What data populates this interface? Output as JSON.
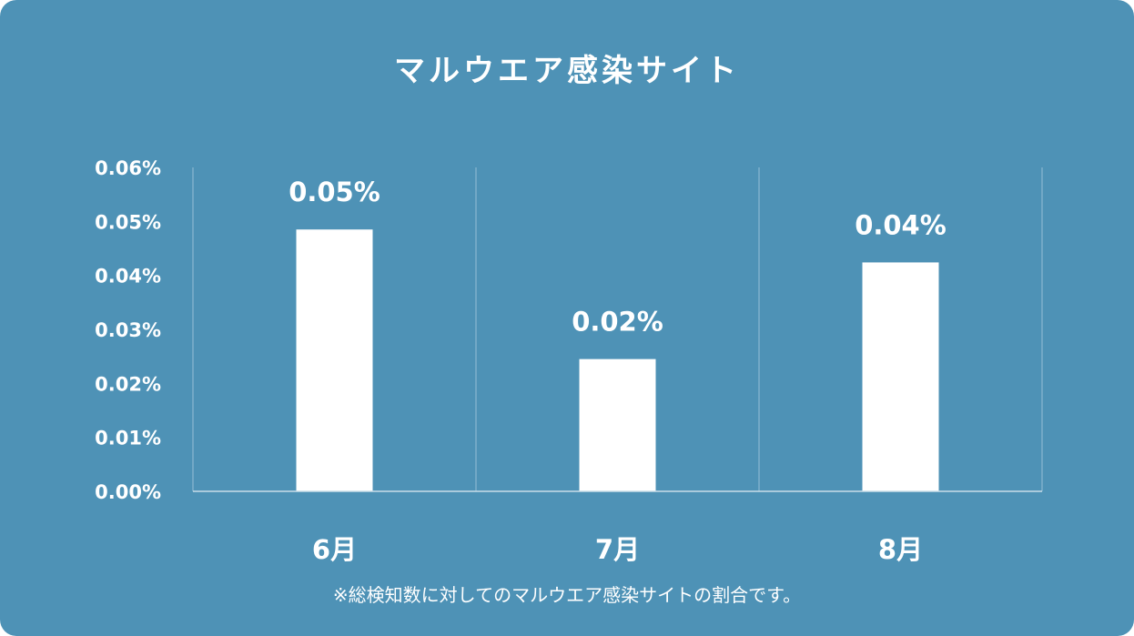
{
  "chart_data": {
    "type": "bar",
    "title": "マルウエア感染サイト",
    "footnote": "※総検知数に対してのマルウエア感染サイトの割合です。",
    "categories": [
      "6月",
      "7月",
      "8月"
    ],
    "values": [
      0.0485,
      0.0245,
      0.0424
    ],
    "data_labels": [
      "0.05%",
      "0.02%",
      "0.04%"
    ],
    "y_ticks": [
      {
        "value": 0.0,
        "label": "0.00%"
      },
      {
        "value": 0.01,
        "label": "0.01%"
      },
      {
        "value": 0.02,
        "label": "0.02%"
      },
      {
        "value": 0.03,
        "label": "0.03%"
      },
      {
        "value": 0.04,
        "label": "0.04%"
      },
      {
        "value": 0.05,
        "label": "0.05%"
      },
      {
        "value": 0.06,
        "label": "0.06%"
      }
    ],
    "ylim": [
      0,
      0.06
    ],
    "xlabel": "",
    "ylabel": "",
    "grid": "vertical separators",
    "legend": "none",
    "colors": {
      "background": "#4e92b6",
      "bar": "#ffffff",
      "text": "#ffffff",
      "axis": "#c9dde9",
      "separator": "#7fb0cb"
    }
  }
}
